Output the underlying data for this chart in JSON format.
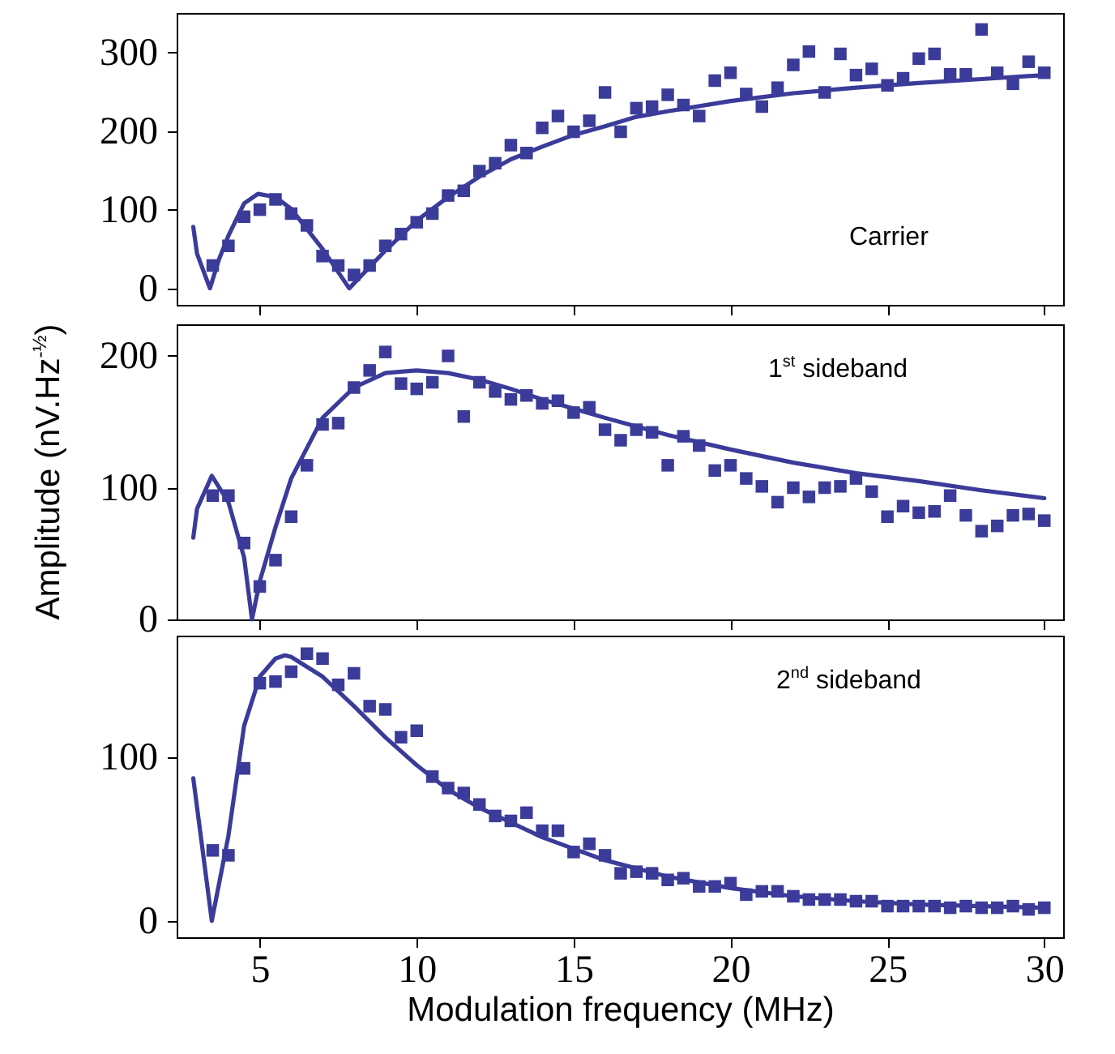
{
  "chart_data": [
    {
      "type": "scatter",
      "xlim": [
        2.35,
        30.6
      ],
      "xticks": [
        5,
        10,
        15,
        20,
        25,
        30
      ],
      "ylim": [
        -21,
        350
      ],
      "yticks": [
        0,
        100,
        200,
        300
      ],
      "tick_labels": "y",
      "annotations": [
        "Carrier"
      ],
      "x": [
        3.5,
        4.0,
        4.5,
        5.0,
        5.5,
        6.0,
        6.5,
        7.0,
        7.5,
        8.0,
        8.5,
        9.0,
        9.5,
        10.0,
        10.5,
        11.0,
        11.5,
        12.0,
        12.5,
        13.0,
        13.5,
        14.0,
        14.5,
        15.0,
        15.5,
        16.0,
        16.5,
        17.0,
        17.5,
        18.0,
        18.5,
        19.0,
        19.5,
        20.0,
        20.5,
        21.0,
        21.5,
        22.0,
        22.5,
        23.0,
        23.5,
        24.0,
        24.5,
        25.0,
        25.5,
        26.0,
        26.5,
        27.0,
        27.5,
        28.0,
        28.5,
        29.0,
        29.5,
        30.0
      ],
      "series": [
        {
          "color": "#3b3b9a",
          "marker": "square",
          "values": [
            29,
            54,
            91,
            100,
            113,
            95,
            80,
            41,
            29,
            17,
            29,
            54,
            69,
            84,
            95,
            118,
            124,
            149,
            159,
            182,
            172,
            204,
            219,
            199,
            213,
            249,
            199,
            229,
            231,
            246,
            233,
            219,
            264,
            274,
            247,
            231,
            255,
            284,
            301,
            249,
            298,
            271,
            279,
            258,
            267,
            292,
            298,
            272,
            272,
            329,
            274,
            260,
            288,
            274
          ]
        },
        {
          "type": "line",
          "color": "#3b3b9a",
          "x": [
            2.88,
            3.0,
            3.41,
            3.7,
            4.0,
            4.5,
            4.94,
            5.5,
            6.0,
            7.0,
            7.85,
            9.0,
            10,
            11,
            12,
            13,
            14,
            15,
            16,
            17,
            18,
            20,
            22,
            24,
            26,
            28,
            30
          ],
          "values": [
            78,
            44,
            0,
            37,
            67,
            108,
            120,
            116,
            101,
            50,
            0,
            48,
            86,
            116,
            142,
            164,
            180,
            195,
            206,
            218,
            225,
            238,
            248,
            255,
            261,
            266,
            271
          ]
        }
      ]
    },
    {
      "type": "scatter",
      "xlim": [
        2.35,
        30.6
      ],
      "xticks": [
        5,
        10,
        15,
        20,
        25,
        30
      ],
      "ylim": [
        0,
        224
      ],
      "yticks": [
        0,
        100,
        200
      ],
      "tick_labels": "y",
      "ylabel": "Amplitude (nV.Hz$^{-½}$)",
      "annotations": [
        "1$^{st}$ sideband"
      ],
      "x": [
        3.5,
        4.0,
        4.5,
        5.0,
        5.5,
        6.0,
        6.5,
        7.0,
        7.5,
        8.0,
        8.5,
        9.0,
        9.5,
        10.0,
        10.5,
        11.0,
        11.5,
        12.0,
        12.5,
        13.0,
        13.5,
        14.0,
        14.5,
        15.0,
        15.5,
        16.0,
        16.5,
        17.0,
        17.5,
        18.0,
        18.5,
        19.0,
        19.5,
        20.0,
        20.5,
        21.0,
        21.5,
        22.0,
        22.5,
        23.0,
        23.5,
        24.0,
        24.5,
        25.0,
        25.5,
        26.0,
        26.5,
        27.0,
        27.5,
        28.0,
        28.5,
        29.0,
        29.5,
        30.0
      ],
      "series": [
        {
          "color": "#3b3b9a",
          "marker": "square",
          "values": [
            94,
            94,
            58,
            25,
            45,
            78,
            117,
            148,
            149,
            176,
            189,
            203,
            179,
            175,
            180,
            200,
            154,
            180,
            173,
            167,
            170,
            164,
            166,
            157,
            161,
            144,
            136,
            144,
            142,
            117,
            139,
            132,
            113,
            117,
            107,
            101,
            89,
            100,
            93,
            100,
            101,
            107,
            97,
            78,
            86,
            81,
            82,
            94,
            79,
            67,
            71,
            79,
            80,
            75
          ]
        },
        {
          "type": "line",
          "color": "#3b3b9a",
          "x": [
            2.88,
            3.0,
            3.47,
            4.0,
            4.5,
            4.75,
            5.0,
            5.5,
            6.0,
            7.0,
            8.0,
            9.0,
            10,
            11,
            12,
            13,
            14,
            15,
            16,
            18,
            20,
            22,
            24,
            26,
            28,
            30
          ],
          "values": [
            62,
            84,
            109,
            89,
            47,
            0,
            29,
            70,
            107,
            153,
            176,
            187,
            189,
            187,
            182,
            175,
            167,
            160,
            153,
            140,
            129,
            119,
            111,
            105,
            98,
            92
          ]
        }
      ]
    },
    {
      "type": "scatter",
      "xlim": [
        2.35,
        30.6
      ],
      "xticks": [
        5,
        10,
        15,
        20,
        25,
        30
      ],
      "ylim": [
        -10,
        174
      ],
      "yticks": [
        0,
        100
      ],
      "xlabel": "Modulation frequency (MHz)",
      "annotations": [
        "2$^{nd}$ sideband"
      ],
      "x": [
        3.5,
        4.0,
        4.5,
        5.0,
        5.5,
        6.0,
        6.5,
        7.0,
        7.5,
        8.0,
        8.5,
        9.0,
        9.5,
        10.0,
        10.5,
        11.0,
        11.5,
        12.0,
        12.5,
        13.0,
        13.5,
        14.0,
        14.5,
        15.0,
        15.5,
        16.0,
        16.5,
        17.0,
        17.5,
        18.0,
        18.5,
        19.0,
        19.5,
        20.0,
        20.5,
        21.0,
        21.5,
        22.0,
        22.5,
        23.0,
        23.5,
        24.0,
        24.5,
        25.0,
        25.5,
        26.0,
        26.5,
        27.0,
        27.5,
        28.0,
        28.5,
        29.0,
        29.5,
        30.0
      ],
      "series": [
        {
          "color": "#3b3b9a",
          "marker": "square",
          "values": [
            43,
            40,
            93,
            145,
            146,
            152,
            163,
            160,
            144,
            151,
            131,
            129,
            112,
            116,
            88,
            81,
            78,
            71,
            64,
            61,
            66,
            55,
            55,
            42,
            47,
            40,
            29,
            30,
            29,
            25,
            26,
            21,
            21,
            23,
            16,
            18,
            18,
            15,
            13,
            13,
            13,
            12,
            12,
            9,
            9,
            9,
            9,
            8,
            9,
            8,
            8,
            9,
            7,
            8
          ]
        },
        {
          "type": "line",
          "color": "#3b3b9a",
          "x": [
            2.88,
            3.47,
            4.0,
            4.5,
            5.0,
            5.5,
            5.8,
            6.0,
            7.0,
            8.0,
            9.0,
            10,
            11,
            12,
            13,
            14,
            15,
            16,
            17,
            18,
            20,
            22,
            24,
            26,
            28,
            30
          ],
          "values": [
            87,
            0,
            52,
            119,
            149,
            160,
            162,
            161,
            149,
            131,
            112,
            95,
            80,
            69,
            60,
            51,
            44,
            37,
            32,
            27,
            20,
            15,
            12,
            10,
            9,
            8
          ]
        }
      ]
    }
  ]
}
